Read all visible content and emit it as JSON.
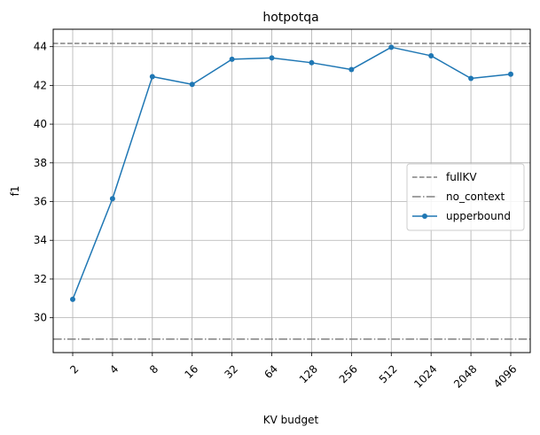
{
  "chart_data": {
    "type": "line",
    "title": "hotpotqa",
    "xlabel": "KV budget",
    "ylabel": "f1",
    "categories": [
      "2",
      "4",
      "8",
      "16",
      "32",
      "64",
      "128",
      "256",
      "512",
      "1024",
      "2048",
      "4096"
    ],
    "ylim": [
      28.2,
      44.9
    ],
    "yticks": [
      30,
      32,
      34,
      36,
      38,
      40,
      42,
      44
    ],
    "grid": true,
    "legend_position": "center-right",
    "series": [
      {
        "name": "upperbound",
        "style": "solid-line-circle-markers",
        "color": "#1f77b4",
        "values": [
          30.95,
          36.15,
          42.45,
          42.05,
          43.35,
          43.42,
          43.17,
          42.82,
          43.97,
          43.53,
          42.36,
          42.58
        ]
      }
    ],
    "reference_lines": [
      {
        "name": "fullKV",
        "style": "dashed",
        "color": "#808080",
        "value": 44.17
      },
      {
        "name": "no_context",
        "style": "dashdot",
        "color": "#808080",
        "value": 28.9
      }
    ]
  }
}
